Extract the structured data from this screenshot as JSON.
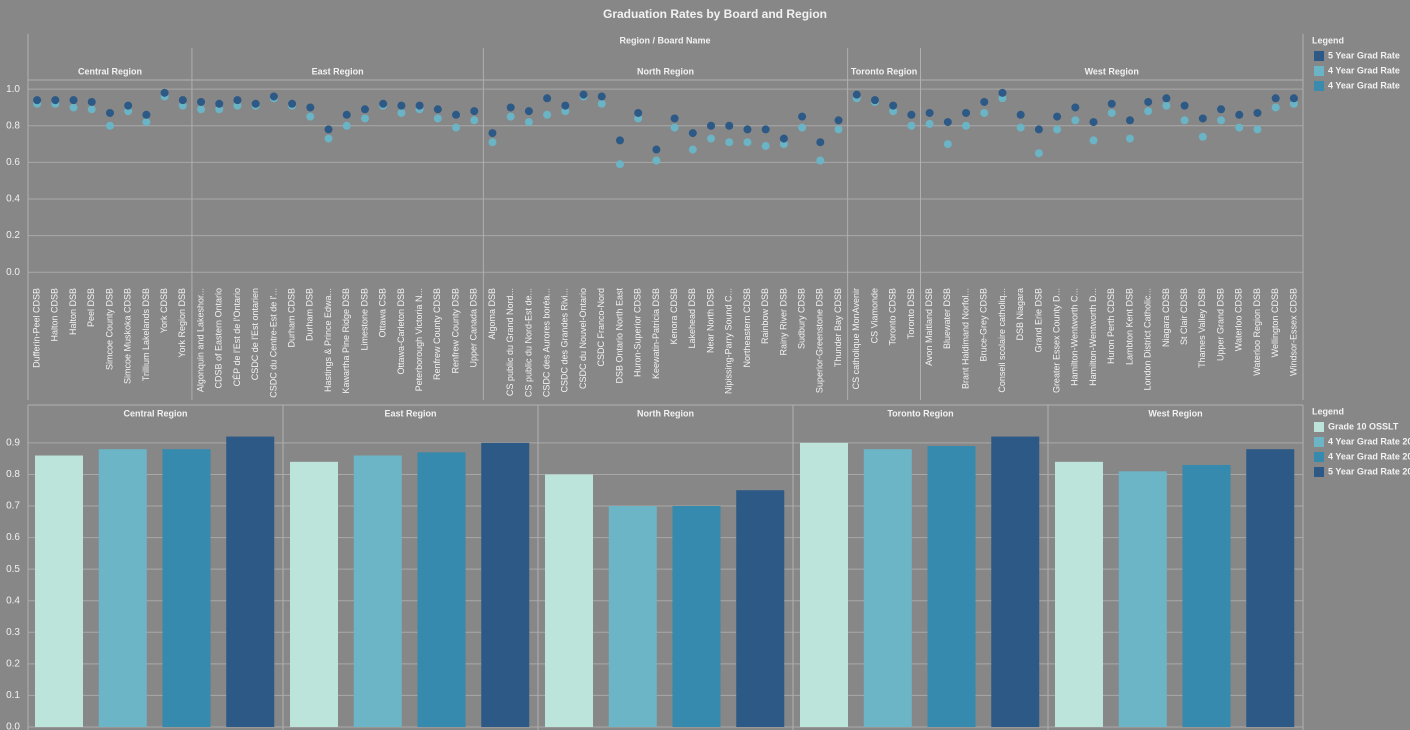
{
  "title": "Graduation Rates by Board and Region",
  "chart_data": [
    {
      "type": "dot",
      "header": "Region / Board Name",
      "legend_title": "Legend",
      "ylim": [
        -0.07,
        1.05
      ],
      "yticks": [
        {
          "value": 0,
          "label": "0.0"
        },
        0.2,
        0.4,
        0.6,
        0.8,
        {
          "value": 1,
          "label": "1.0"
        }
      ],
      "grid": true,
      "groups": [
        {
          "name": "Central Region",
          "categories": [
            "Dufferin-Peel CDSB",
            "Halton CDSB",
            "Halton DSB",
            "Peel DSB",
            "Simcoe County DSB",
            "Simcoe Muskoka CDSB",
            "Trillium Lakelands DSB",
            "York CDSB",
            "York Region DSB"
          ]
        },
        {
          "name": "East Region",
          "categories": [
            "Algonquin and Lakeshor...",
            "CDSB of Eastern Ontario",
            "CÉP de l'Est de l'Ontario",
            "CSDC de l'Est ontarien",
            "CSDC du Centre-Est de l'...",
            "Durham CDSB",
            "Durham DSB",
            "Hastings & Prince Edwa...",
            "Kawartha Pine Ridge DSB",
            "Limestone DSB",
            "Ottawa CSB",
            "Ottawa-Carleton DSB",
            "Peterborough Victoria N...",
            "Renfrew County CDSB",
            "Renfrew County DSB",
            "Upper Canada DSB"
          ]
        },
        {
          "name": "North Region",
          "categories": [
            "Algoma DSB",
            "CS public du Grand Nord...",
            "CS public du Nord-Est de...",
            "CSDC des Aurores boréa...",
            "CSDC des Grandes Rivi...",
            "CSDC du Nouvel-Ontario",
            "CSDC Franco-Nord",
            "DSB Ontario North East",
            "Huron-Superior CDSB",
            "Keewatin-Patricia DSB",
            "Kenora CDSB",
            "Lakehead DSB",
            "Near North DSB",
            "Nipissing-Parry Sound C...",
            "Northeastern CDSB",
            "Rainbow DSB",
            "Rainy River DSB",
            "Sudbury CDSB",
            "Superior-Greenstone DSB",
            "Thunder Bay CDSB"
          ]
        },
        {
          "name": "Toronto Region",
          "categories": [
            "CS catholique MonAvenir",
            "CS Viamonde",
            "Toronto CDSB",
            "Toronto DSB"
          ]
        },
        {
          "name": "West Region",
          "categories": [
            "Avon Maitland DSB",
            "Bluewater DSB",
            "Brant Haldimand Norfol...",
            "Bruce-Grey CDSB",
            "Conseil scolaire catholiq...",
            "DSB Niagara",
            "Grand Erie DSB",
            "Greater Essex County D...",
            "Hamilton-Wentworth C...",
            "Hamilton-Wentworth D...",
            "Huron Perth CDSB",
            "Lambton Kent DSB",
            "London District Catholic...",
            "Niagara CDSB",
            "St Clair CDSB",
            "Thames Valley DSB",
            "Upper Grand DSB",
            "Waterloo CDSB",
            "Waterloo Region DSB",
            "Wellington CDSB",
            "Windsor-Essex CDSB"
          ]
        }
      ],
      "series": [
        {
          "name": "5 Year Grad Rate",
          "color": "#2c5985",
          "values": [
            0.94,
            0.94,
            0.94,
            0.93,
            0.87,
            0.91,
            0.86,
            0.98,
            0.94,
            0.93,
            0.92,
            0.94,
            0.92,
            0.96,
            0.92,
            0.9,
            0.78,
            0.86,
            0.89,
            0.92,
            0.91,
            0.91,
            0.89,
            0.86,
            0.88,
            0.76,
            0.9,
            0.88,
            0.95,
            0.91,
            0.97,
            0.96,
            0.72,
            0.87,
            0.67,
            0.84,
            0.76,
            0.8,
            0.8,
            0.78,
            0.78,
            0.73,
            0.85,
            0.71,
            0.83,
            0.97,
            0.94,
            0.91,
            0.86,
            0.87,
            0.82,
            0.87,
            0.93,
            0.98,
            0.86,
            0.78,
            0.85,
            0.9,
            0.82,
            0.92,
            0.83,
            0.93,
            0.95,
            0.91,
            0.84,
            0.89,
            0.86,
            0.87,
            0.95,
            0.95
          ]
        },
        {
          "name": "4 Year Grad Rate",
          "color": "#6ab4c6",
          "values": [
            0.92,
            0.92,
            0.9,
            0.89,
            0.8,
            0.88,
            0.82,
            0.96,
            0.91,
            0.89,
            0.89,
            0.91,
            0.91,
            0.95,
            0.91,
            0.85,
            0.73,
            0.8,
            0.84,
            0.91,
            0.87,
            0.89,
            0.84,
            0.79,
            0.83,
            0.71,
            0.85,
            0.82,
            0.86,
            0.88,
            0.96,
            0.92,
            0.59,
            0.84,
            0.61,
            0.79,
            0.67,
            0.73,
            0.71,
            0.71,
            0.69,
            0.7,
            0.79,
            0.61,
            0.78,
            0.95,
            0.93,
            0.88,
            0.8,
            0.81,
            0.7,
            0.8,
            0.87,
            0.95,
            0.79,
            0.65,
            0.78,
            0.83,
            0.72,
            0.87,
            0.73,
            0.88,
            0.91,
            0.83,
            0.74,
            0.83,
            0.79,
            0.78,
            0.9,
            0.92
          ]
        }
      ],
      "legend_extra": [
        {
          "name": "4 Year Grad Rate",
          "color": "#3a8bae"
        }
      ]
    },
    {
      "type": "bar",
      "legend_title": "Legend",
      "ylim": [
        0,
        1.02
      ],
      "yticks": [
        {
          "value": 0,
          "label": "0.0"
        },
        0.1,
        0.2,
        0.3,
        0.4,
        0.5,
        0.6,
        0.7,
        0.8,
        0.9
      ],
      "grid": true,
      "groups": [
        "Central Region",
        "East Region",
        "North Region",
        "Toronto Region",
        "West Region"
      ],
      "series": [
        {
          "name": "Grade 10 OSSLT",
          "color": "#bce4da",
          "values": [
            0.86,
            0.84,
            0.8,
            0.9,
            0.84
          ]
        },
        {
          "name": "4 Year Grad Rate 20",
          "color": "#6bb5c7",
          "values": [
            0.88,
            0.86,
            0.7,
            0.88,
            0.81
          ]
        },
        {
          "name": "4 Year Grad Rate 20",
          "color": "#358aad",
          "values": [
            0.88,
            0.87,
            0.7,
            0.89,
            0.83
          ]
        },
        {
          "name": "5 Year Grad Rate 20",
          "color": "#2c5986",
          "values": [
            0.92,
            0.9,
            0.75,
            0.92,
            0.88
          ]
        }
      ]
    }
  ]
}
